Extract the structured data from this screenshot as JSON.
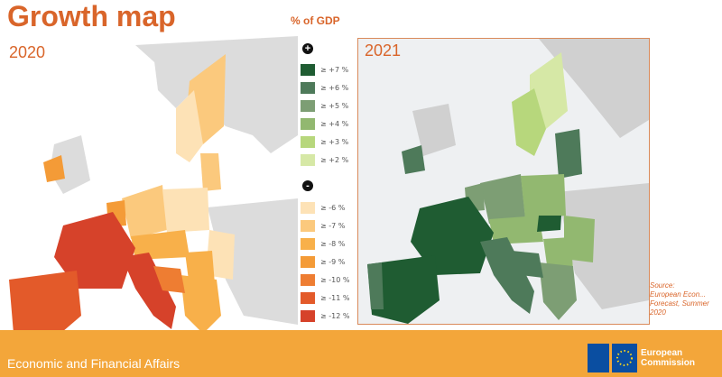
{
  "title": "Growth map",
  "left_map": {
    "year": "2020"
  },
  "right_map": {
    "year": "2021"
  },
  "legend": {
    "unit": "% of GDP",
    "positive_symbol": "+",
    "negative_symbol": "-",
    "positive": [
      {
        "label": "≥ +7 %",
        "color": "#1f5c32"
      },
      {
        "label": "≥ +6 %",
        "color": "#4e7a5a"
      },
      {
        "label": "≥ +5 %",
        "color": "#7d9e74"
      },
      {
        "label": "≥ +4 %",
        "color": "#92b870"
      },
      {
        "label": "≥ +3 %",
        "color": "#b7d77c"
      },
      {
        "label": "≥ +2 %",
        "color": "#d6e8a6"
      }
    ],
    "negative": [
      {
        "label": "≥ -6 %",
        "color": "#fde2b6"
      },
      {
        "label": "≥ -7 %",
        "color": "#fbc97d"
      },
      {
        "label": "≥ -8 %",
        "color": "#f8b04a"
      },
      {
        "label": "≥ -9 %",
        "color": "#f49b37"
      },
      {
        "label": "≥ -10 %",
        "color": "#ee7d32"
      },
      {
        "label": "≥ -11 %",
        "color": "#e35a2a"
      },
      {
        "label": "≥ -12 %",
        "color": "#d6422a"
      }
    ]
  },
  "source": {
    "line1": "Source:",
    "line2": "European Econ...",
    "line3": "Forecast, Summer",
    "line4": "2020"
  },
  "footer": {
    "dg": "Economic and Financial Affairs",
    "ec_line1": "European",
    "ec_line2": "Commission"
  }
}
